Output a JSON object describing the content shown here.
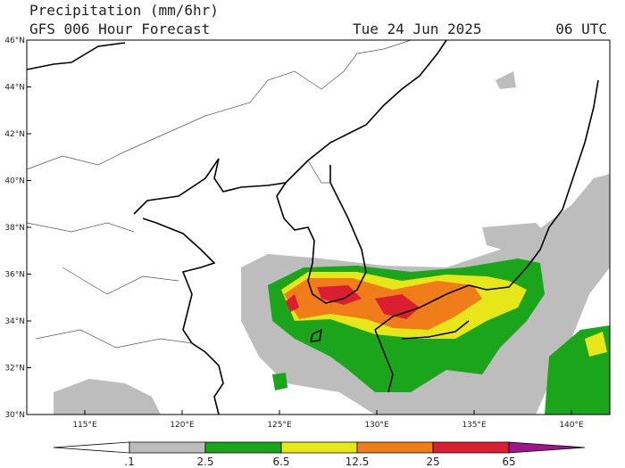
{
  "header": {
    "title": "Precipitation (mm/6hr)",
    "subtitle": "GFS 006 Hour Forecast",
    "date": "Tue 24 Jun 2025",
    "time": "06 UTC"
  },
  "map": {
    "lat_labels": [
      "46°N",
      "44°N",
      "42°N",
      "40°N",
      "38°N",
      "36°N",
      "34°N",
      "32°N",
      "30°N"
    ],
    "lon_labels": [
      "115°E",
      "120°E",
      "125°E",
      "130°E",
      "135°E",
      "140°E"
    ]
  },
  "colorbar": {
    "labels": [
      ".1",
      "2.5",
      "6.5",
      "12.5",
      "25",
      "65"
    ],
    "colors": [
      "#ffffff",
      "#bdbdbd",
      "#1aa51a",
      "#e6e619",
      "#f07d19",
      "#dc1e32",
      "#a0148c"
    ]
  }
}
